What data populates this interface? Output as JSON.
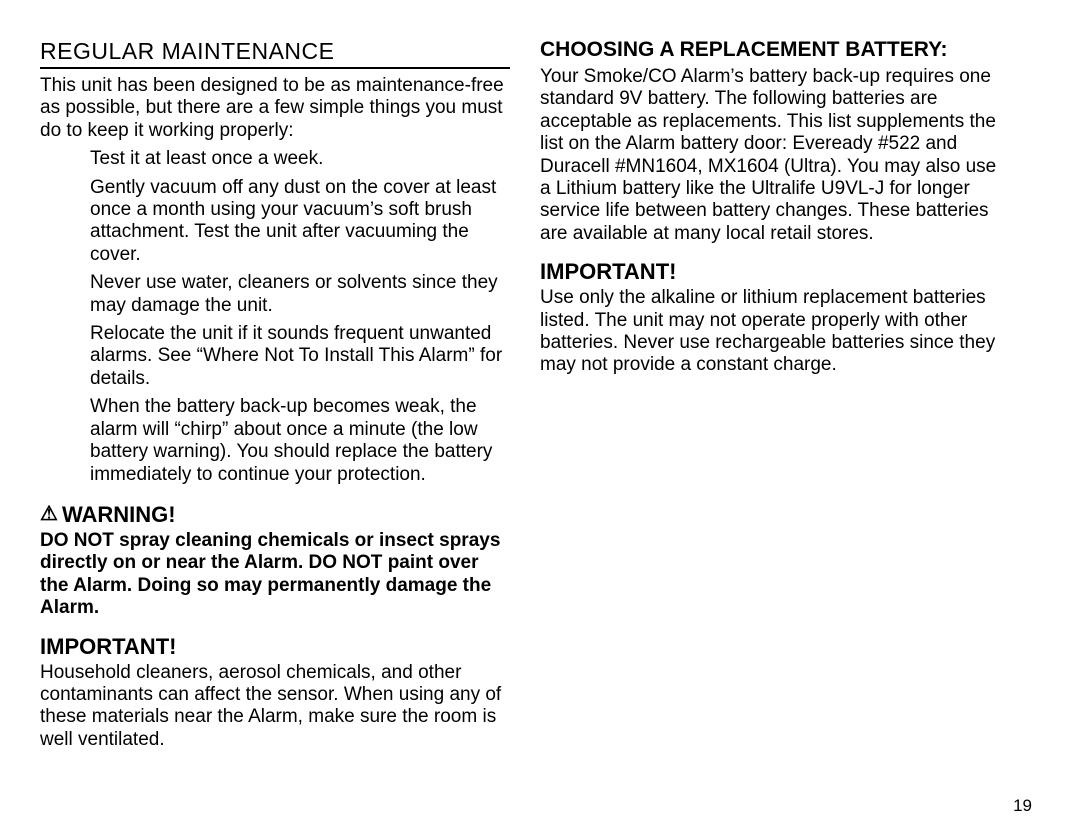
{
  "page_number": "19",
  "typography": {
    "body_fontsize_pt": 19,
    "heading_fontsize_pt": 23,
    "bold_heading_fontsize_pt": 22,
    "line_height": 1.18,
    "font_family": "Arial",
    "text_color": "#000000",
    "background_color": "#ffffff",
    "rule_color": "#000000"
  },
  "left": {
    "heading": "REGULAR MAINTENANCE",
    "intro": "This unit has been designed to be as maintenance-free as possible, but there are a few simple things you must do to keep it working properly:",
    "bullets": [
      "Test it at least once a week.",
      "Gently vacuum off any dust on the cover at least once a month using your vacuum’s soft brush attachment. Test the unit after vacuuming the cover.",
      "Never use water, cleaners or solvents since they may damage the unit.",
      "Relocate the unit if it sounds frequent unwanted alarms. See “Where Not To Install This Alarm” for details.",
      "When the battery back-up becomes weak, the alarm will “chirp” about once a minute (the low battery warning). You should replace the battery immediately to continue your protection."
    ],
    "warning_label": "WARNING!",
    "warning_icon": "⚠",
    "warning_body": "DO NOT spray cleaning chemicals or insect sprays directly on or near the Alarm. DO NOT paint over the Alarm. Doing so may permanently damage the Alarm.",
    "important_label": "IMPORTANT!",
    "important_body": "Household cleaners, aerosol chemicals, and other contaminants can affect the sensor. When using any of these materials near the Alarm, make sure the room is well ventilated."
  },
  "right": {
    "heading": "CHOOSING A REPLACEMENT BATTERY:",
    "body": "Your Smoke/CO Alarm’s battery back-up requires one standard 9V battery. The following batteries are acceptable as replacements. This list supplements the list on the Alarm battery door: Eveready #522 and Duracell #MN1604, MX1604 (Ultra). You may also use a Lithium battery like the Ultralife U9VL-J for longer service life between battery changes. These batteries are available at many local retail stores.",
    "important_label": "IMPORTANT!",
    "important_body": "Use only the alkaline or lithium replacement batteries listed. The unit may not operate properly with other batteries. Never use rechargeable batteries since they may not provide a constant charge."
  }
}
